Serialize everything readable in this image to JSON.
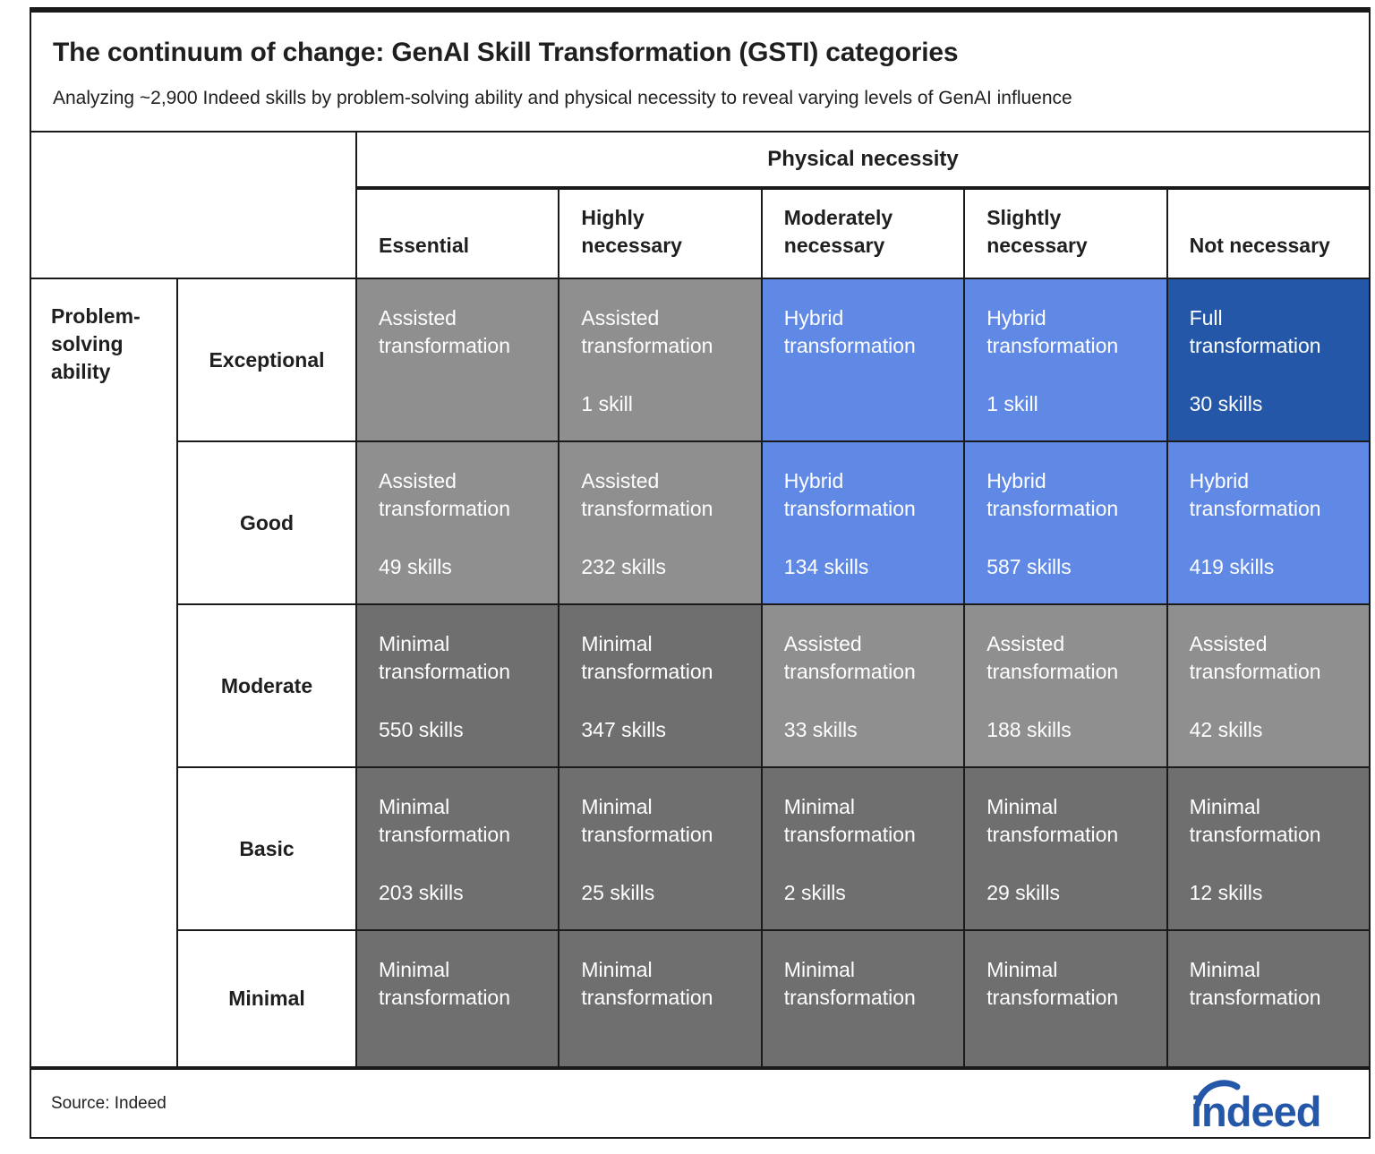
{
  "header": {
    "title": "The continuum of change: GenAI Skill Transformation (GSTI) categories",
    "subtitle": "Analyzing ~2,900 Indeed skills by problem-solving ability and physical necessity to reveal varying levels of GenAI influence"
  },
  "palette": {
    "gray_light": "#8f8f8f",
    "gray_dark": "#6f6f6f",
    "blue": "#6089e6",
    "dark_blue": "#2457a7",
    "ink": "#1a1a1a",
    "logo_blue": "#2457a7"
  },
  "matrix": {
    "column_group_label": "Physical necessity",
    "row_group_label": "Problem-solving ability",
    "columns": [
      "Essential",
      "Highly necessary",
      "Moderately necessary",
      "Slightly necessary",
      "Not necessary"
    ],
    "rows": [
      "Exceptional",
      "Good",
      "Moderate",
      "Basic",
      "Minimal"
    ],
    "cells": [
      {
        "label": "Assisted transformation",
        "count": "",
        "color": "gray_light"
      },
      {
        "label": "Assisted transformation",
        "count": "1 skill",
        "color": "gray_light"
      },
      {
        "label": "Hybrid transformation",
        "count": "",
        "color": "blue"
      },
      {
        "label": "Hybrid transformation",
        "count": "1 skill",
        "color": "blue"
      },
      {
        "label": "Full transformation",
        "count": "30 skills",
        "color": "dark_blue"
      },
      {
        "label": "Assisted transformation",
        "count": "49 skills",
        "color": "gray_light"
      },
      {
        "label": "Assisted transformation",
        "count": "232 skills",
        "color": "gray_light"
      },
      {
        "label": "Hybrid transformation",
        "count": "134 skills",
        "color": "blue"
      },
      {
        "label": "Hybrid transformation",
        "count": "587 skills",
        "color": "blue"
      },
      {
        "label": "Hybrid transformation",
        "count": "419 skills",
        "color": "blue"
      },
      {
        "label": "Minimal transformation",
        "count": "550 skills",
        "color": "gray_dark"
      },
      {
        "label": "Minimal transformation",
        "count": "347 skills",
        "color": "gray_dark"
      },
      {
        "label": "Assisted transformation",
        "count": "33 skills",
        "color": "gray_light"
      },
      {
        "label": "Assisted transformation",
        "count": "188 skills",
        "color": "gray_light"
      },
      {
        "label": "Assisted transformation",
        "count": "42 skills",
        "color": "gray_light"
      },
      {
        "label": "Minimal transformation",
        "count": "203 skills",
        "color": "gray_dark"
      },
      {
        "label": "Minimal transformation",
        "count": "25 skills",
        "color": "gray_dark"
      },
      {
        "label": "Minimal transformation",
        "count": "2 skills",
        "color": "gray_dark"
      },
      {
        "label": "Minimal transformation",
        "count": "29 skills",
        "color": "gray_dark"
      },
      {
        "label": "Minimal transformation",
        "count": "12 skills",
        "color": "gray_dark"
      },
      {
        "label": "Minimal transformation",
        "count": "",
        "color": "gray_dark"
      },
      {
        "label": "Minimal transformation",
        "count": "",
        "color": "gray_dark"
      },
      {
        "label": "Minimal transformation",
        "count": "",
        "color": "gray_dark"
      },
      {
        "label": "Minimal transformation",
        "count": "",
        "color": "gray_dark"
      },
      {
        "label": "Minimal transformation",
        "count": "",
        "color": "gray_dark"
      }
    ]
  },
  "chart_data": {
    "type": "heatmap",
    "title": "The continuum of change: GenAI Skill Transformation (GSTI) categories",
    "subtitle": "Analyzing ~2,900 Indeed skills by problem-solving ability and physical necessity to reveal varying levels of GenAI influence",
    "x_axis_label": "Physical necessity",
    "y_axis_label": "Problem-solving ability",
    "columns": [
      "Essential",
      "Highly necessary",
      "Moderately necessary",
      "Slightly necessary",
      "Not necessary"
    ],
    "rows": [
      "Exceptional",
      "Good",
      "Moderate",
      "Basic",
      "Minimal"
    ],
    "categories": [
      [
        "Assisted transformation",
        "Assisted transformation",
        "Hybrid transformation",
        "Hybrid transformation",
        "Full transformation"
      ],
      [
        "Assisted transformation",
        "Assisted transformation",
        "Hybrid transformation",
        "Hybrid transformation",
        "Hybrid transformation"
      ],
      [
        "Minimal transformation",
        "Minimal transformation",
        "Assisted transformation",
        "Assisted transformation",
        "Assisted transformation"
      ],
      [
        "Minimal transformation",
        "Minimal transformation",
        "Minimal transformation",
        "Minimal transformation",
        "Minimal transformation"
      ],
      [
        "Minimal transformation",
        "Minimal transformation",
        "Minimal transformation",
        "Minimal transformation",
        "Minimal transformation"
      ]
    ],
    "skill_counts": [
      [
        null,
        1,
        null,
        1,
        30
      ],
      [
        49,
        232,
        134,
        587,
        419
      ],
      [
        550,
        347,
        33,
        188,
        42
      ],
      [
        203,
        25,
        2,
        29,
        12
      ],
      [
        null,
        null,
        null,
        null,
        null
      ]
    ],
    "legend_position": "none",
    "grid": true
  },
  "footer": {
    "source": "Source: Indeed",
    "logo_text": "indeed"
  }
}
